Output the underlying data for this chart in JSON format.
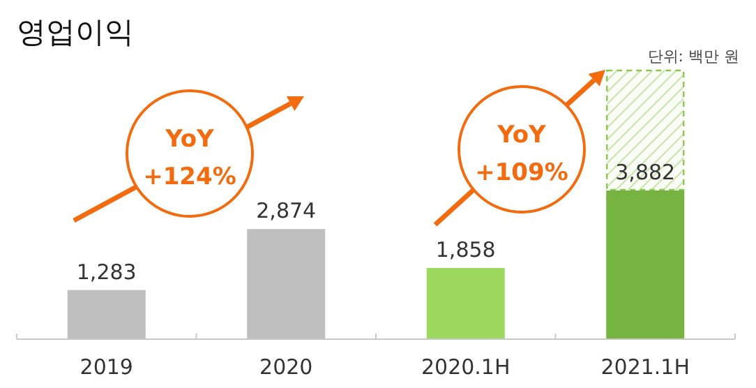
{
  "chart_data": {
    "type": "bar",
    "title": "영업이익",
    "categories": [
      "2019",
      "2020",
      "2020.1H",
      "2021.1H"
    ],
    "stacked": true,
    "series": [
      {
        "colors": [
          "#bfbfbf",
          "#bfbfbf",
          "#9dd85f",
          "#76b340"
        ],
        "values": [
          1283,
          2874,
          1858,
          3882
        ],
        "value_labels": [
          "1,283",
          "2,874",
          "1,858",
          "3,882"
        ]
      },
      {
        "color": "#8cc850",
        "values": [
          null,
          null,
          null,
          3150
        ]
      }
    ],
    "annotations": [
      "YoY",
      "+124%",
      "YoY",
      "+109%",
      "단위: 백만 원"
    ]
  }
}
